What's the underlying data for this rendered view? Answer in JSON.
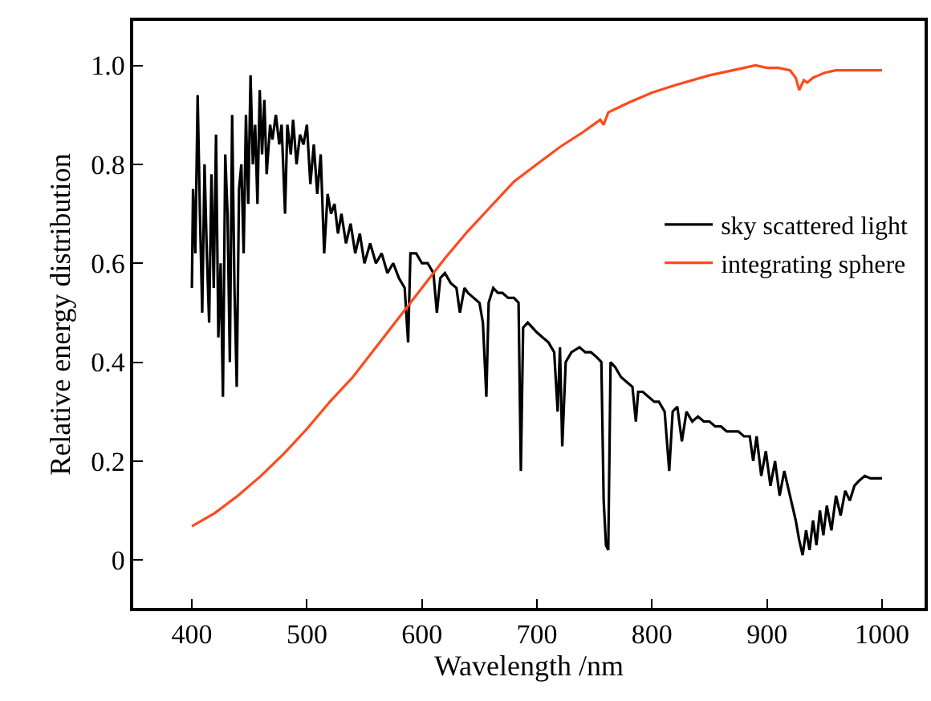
{
  "chart_data": {
    "type": "line",
    "xlabel": "Wavelength /nm",
    "ylabel": "Relative energy distribution",
    "xlim": [
      349,
      1037
    ],
    "xticks": [
      400,
      500,
      600,
      700,
      800,
      900,
      1000
    ],
    "ylim": [
      -0.097,
      1.09
    ],
    "yticks": [
      0,
      0.2,
      0.4,
      0.6,
      0.8,
      {
        "value": 1.0,
        "label": "1.0"
      }
    ],
    "legend": "right",
    "marker": "none",
    "line_style": "solid",
    "series": [
      {
        "name": "sky scattered light",
        "color": "#000000",
        "x": [
          400,
          401,
          403,
          405,
          407,
          409,
          411,
          413,
          415,
          417,
          419,
          421,
          423,
          425,
          427,
          429,
          431,
          433,
          435,
          437,
          439,
          441,
          443,
          445,
          447,
          449,
          451,
          453,
          455,
          457,
          459,
          461,
          463,
          465,
          468,
          470,
          473,
          476,
          478,
          481,
          483,
          486,
          488,
          491,
          494,
          497,
          500,
          503,
          506,
          509,
          512,
          515,
          518,
          521,
          524,
          527,
          530,
          534,
          538,
          542,
          546,
          550,
          555,
          560,
          565,
          570,
          575,
          580,
          585,
          588,
          590,
          595,
          600,
          605,
          610,
          613,
          616,
          620,
          625,
          630,
          633,
          637,
          640,
          645,
          650,
          653,
          656,
          658,
          662,
          666,
          670,
          675,
          680,
          684,
          686,
          688,
          692,
          696,
          700,
          705,
          710,
          715,
          718,
          720,
          722,
          725,
          730,
          737,
          742,
          747,
          752,
          756,
          758,
          760,
          762,
          764,
          768,
          773,
          778,
          783,
          786,
          788,
          792,
          797,
          802,
          806,
          811,
          815,
          818,
          822,
          826,
          830,
          835,
          840,
          845,
          850,
          855,
          860,
          865,
          870,
          875,
          880,
          885,
          888,
          891,
          895,
          899,
          903,
          907,
          911,
          915,
          920,
          925,
          928,
          931,
          934,
          937,
          940,
          943,
          946,
          949,
          952,
          956,
          960,
          964,
          968,
          972,
          976,
          980,
          985,
          990,
          995,
          1000
        ],
        "values": [
          0.55,
          0.75,
          0.62,
          0.94,
          0.7,
          0.5,
          0.8,
          0.62,
          0.48,
          0.78,
          0.55,
          0.86,
          0.45,
          0.6,
          0.33,
          0.82,
          0.7,
          0.4,
          0.9,
          0.55,
          0.35,
          0.75,
          0.8,
          0.62,
          0.9,
          0.72,
          0.98,
          0.8,
          0.88,
          0.72,
          0.95,
          0.82,
          0.93,
          0.78,
          0.88,
          0.85,
          0.9,
          0.84,
          0.88,
          0.7,
          0.88,
          0.82,
          0.89,
          0.8,
          0.86,
          0.84,
          0.88,
          0.76,
          0.84,
          0.74,
          0.82,
          0.62,
          0.74,
          0.7,
          0.72,
          0.66,
          0.7,
          0.64,
          0.68,
          0.62,
          0.66,
          0.6,
          0.64,
          0.6,
          0.62,
          0.58,
          0.6,
          0.57,
          0.55,
          0.44,
          0.62,
          0.62,
          0.6,
          0.6,
          0.58,
          0.5,
          0.57,
          0.58,
          0.56,
          0.55,
          0.5,
          0.55,
          0.54,
          0.53,
          0.52,
          0.48,
          0.33,
          0.52,
          0.55,
          0.54,
          0.54,
          0.53,
          0.53,
          0.52,
          0.18,
          0.47,
          0.48,
          0.47,
          0.46,
          0.45,
          0.44,
          0.42,
          0.3,
          0.43,
          0.23,
          0.4,
          0.42,
          0.43,
          0.42,
          0.42,
          0.41,
          0.4,
          0.12,
          0.03,
          0.02,
          0.4,
          0.39,
          0.37,
          0.36,
          0.35,
          0.28,
          0.34,
          0.34,
          0.33,
          0.32,
          0.32,
          0.3,
          0.18,
          0.3,
          0.31,
          0.24,
          0.3,
          0.28,
          0.29,
          0.28,
          0.28,
          0.27,
          0.27,
          0.26,
          0.26,
          0.26,
          0.25,
          0.25,
          0.2,
          0.25,
          0.17,
          0.22,
          0.15,
          0.2,
          0.13,
          0.18,
          0.13,
          0.08,
          0.04,
          0.01,
          0.06,
          0.02,
          0.08,
          0.03,
          0.1,
          0.05,
          0.11,
          0.06,
          0.13,
          0.09,
          0.14,
          0.12,
          0.15,
          0.16,
          0.17,
          0.165,
          0.165,
          0.165
        ]
      },
      {
        "name": "integrating sphere",
        "color": "#ff4a1c",
        "x": [
          400,
          420,
          440,
          460,
          480,
          500,
          520,
          540,
          560,
          580,
          600,
          620,
          640,
          660,
          680,
          700,
          720,
          740,
          755,
          758,
          762,
          780,
          800,
          820,
          850,
          880,
          890,
          900,
          910,
          920,
          925,
          928,
          932,
          935,
          940,
          950,
          960,
          980,
          1000
        ],
        "values": [
          0.068,
          0.095,
          0.13,
          0.17,
          0.215,
          0.265,
          0.32,
          0.37,
          0.43,
          0.49,
          0.55,
          0.61,
          0.665,
          0.715,
          0.765,
          0.8,
          0.835,
          0.865,
          0.89,
          0.88,
          0.905,
          0.925,
          0.945,
          0.96,
          0.98,
          0.995,
          1.0,
          0.995,
          0.995,
          0.99,
          0.975,
          0.95,
          0.97,
          0.965,
          0.975,
          0.985,
          0.99,
          0.99,
          0.99
        ]
      }
    ]
  }
}
